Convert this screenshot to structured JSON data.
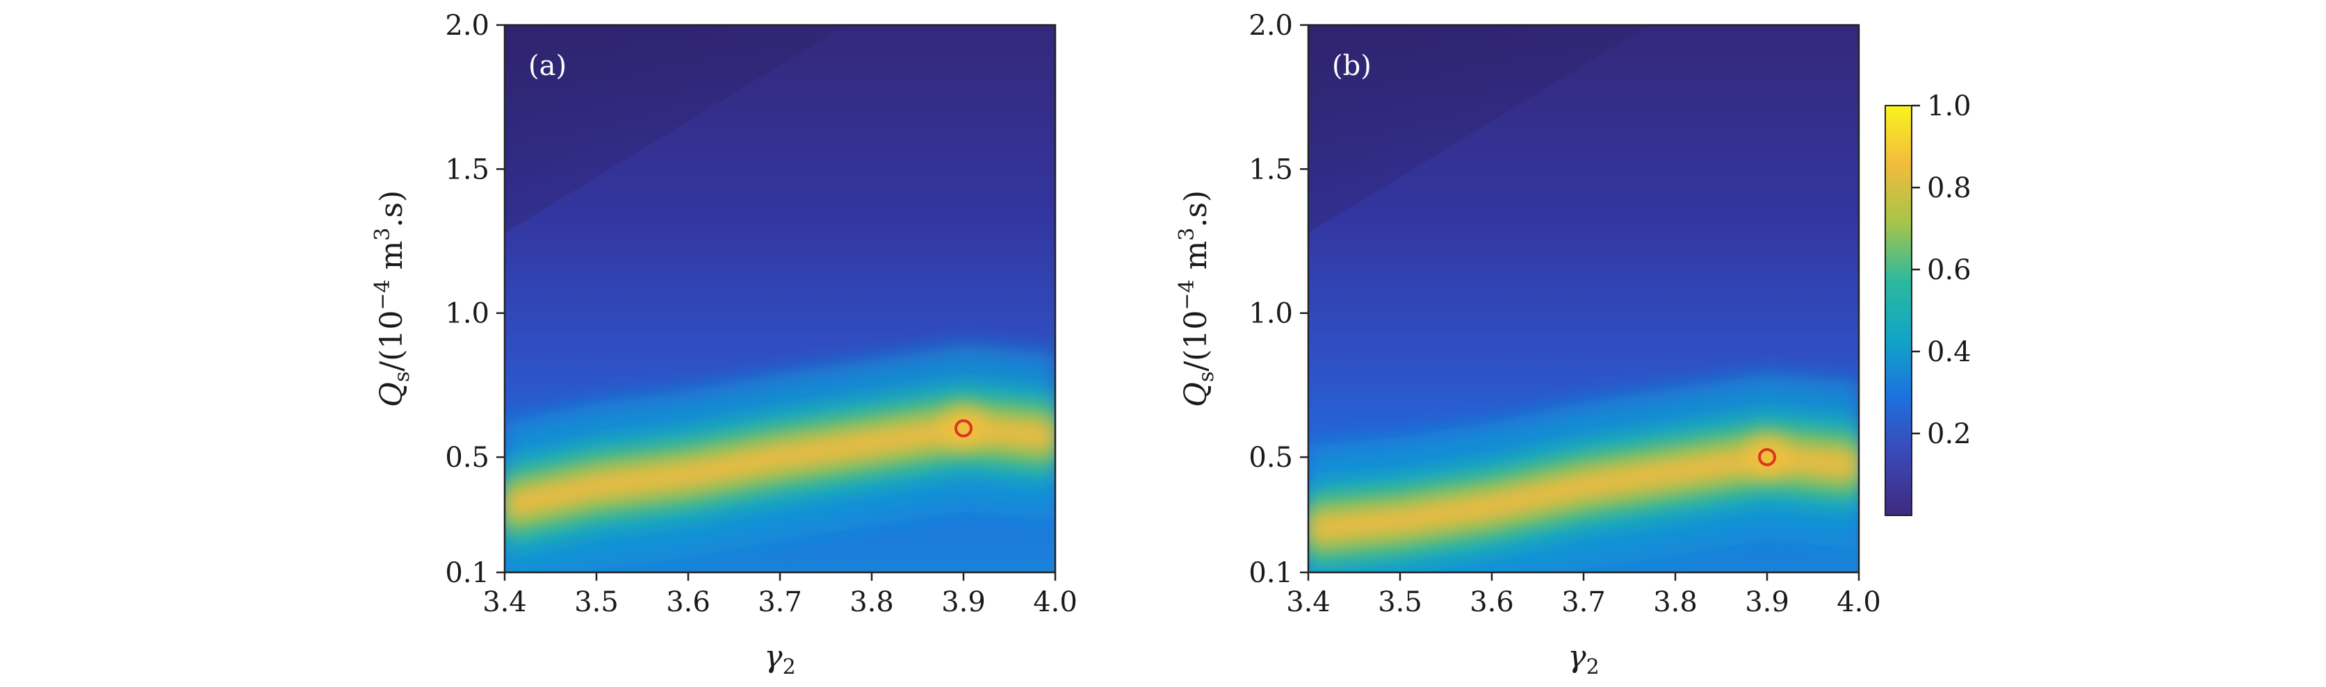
{
  "chart_data": [
    {
      "type": "heatmap",
      "panel_label": "(a)",
      "xlabel": "γ2",
      "ylabel": "Qs/(10−4 m3.s)",
      "xlim": [
        3.4,
        4.0
      ],
      "ylim": [
        0.1,
        2.0
      ],
      "x_ticks": [
        "3.4",
        "3.5",
        "3.6",
        "3.7",
        "3.8",
        "3.9",
        "4.0"
      ],
      "y_ticks": [
        "0.1",
        "0.5",
        "1.0",
        "1.5",
        "2.0"
      ],
      "y_tick_values": [
        0.1,
        0.5,
        1.0,
        1.5,
        2.0
      ],
      "optimum": {
        "x": 3.9,
        "y": 0.6
      },
      "ridge": [
        [
          3.4,
          0.33
        ],
        [
          3.5,
          0.4
        ],
        [
          3.6,
          0.44
        ],
        [
          3.7,
          0.5
        ],
        [
          3.8,
          0.55
        ],
        [
          3.9,
          0.6
        ],
        [
          4.0,
          0.57
        ]
      ]
    },
    {
      "type": "heatmap",
      "panel_label": "(b)",
      "xlabel": "γ2",
      "ylabel": "Qs/(10−4 m3.s)",
      "xlim": [
        3.4,
        4.0
      ],
      "ylim": [
        0.1,
        2.0
      ],
      "x_ticks": [
        "3.4",
        "3.5",
        "3.6",
        "3.7",
        "3.8",
        "3.9",
        "4.0"
      ],
      "y_ticks": [
        "0.1",
        "0.5",
        "1.0",
        "1.5",
        "2.0"
      ],
      "y_tick_values": [
        0.1,
        0.5,
        1.0,
        1.5,
        2.0
      ],
      "optimum": {
        "x": 3.9,
        "y": 0.5
      },
      "ridge": [
        [
          3.4,
          0.25
        ],
        [
          3.5,
          0.28
        ],
        [
          3.6,
          0.33
        ],
        [
          3.7,
          0.4
        ],
        [
          3.8,
          0.45
        ],
        [
          3.9,
          0.5
        ],
        [
          4.0,
          0.47
        ]
      ]
    }
  ],
  "colorbar": {
    "range": [
      0.0,
      1.0
    ],
    "ticks": [
      "0.2",
      "0.4",
      "0.6",
      "0.8",
      "1.0"
    ],
    "tick_values": [
      0.2,
      0.4,
      0.6,
      0.8,
      1.0
    ],
    "colormap": [
      "#3e2a7e",
      "#3b47b5",
      "#1e70de",
      "#11a5c7",
      "#2bb99e",
      "#a6c44a",
      "#f1bc3c",
      "#f9f41e"
    ]
  }
}
